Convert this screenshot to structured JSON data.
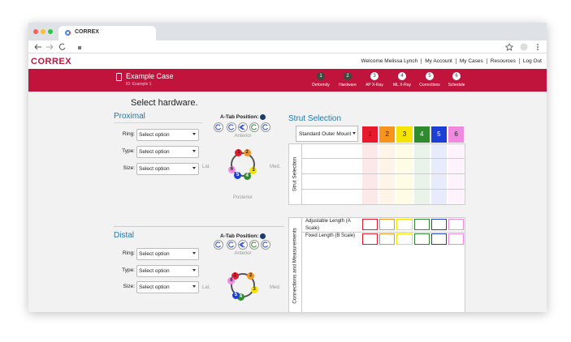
{
  "browser": {
    "tab_title": "CORREX"
  },
  "app": {
    "logo": "CORREX",
    "nav": [
      "Welcome Melissa Lynch",
      "My Account",
      "My Cases",
      "Resources",
      "Log Out"
    ],
    "case_title": "Example Case",
    "case_id": "ID: Example 1",
    "steps": [
      {
        "number": "1",
        "label": "Deformity"
      },
      {
        "number": "2",
        "label": "Hardware"
      },
      {
        "number": "3",
        "label": "AP X-Ray"
      },
      {
        "number": "4",
        "label": "ML X-Ray"
      },
      {
        "number": "5",
        "label": "Corrections"
      },
      {
        "number": "6",
        "label": "Schedule"
      }
    ]
  },
  "heading": "Select hardware.",
  "sections": [
    {
      "title": "Proximal",
      "fields": [
        {
          "label": "Ring:",
          "value": "Select option"
        },
        {
          "label": "Type:",
          "value": "Select option"
        },
        {
          "label": "Size:",
          "value": "Select option"
        }
      ],
      "atab_label": "A-Tab Position:",
      "anterior": "Anterior",
      "posterior": "Posterior",
      "lat": "Lat.",
      "med": "Med.",
      "ring_dots": [
        {
          "label": "1",
          "color": "#e8192c"
        },
        {
          "label": "2",
          "color": "#f7941d"
        },
        {
          "label": "3",
          "color": "#f5e400"
        },
        {
          "label": "4",
          "color": "#2e8b2e"
        },
        {
          "label": "5",
          "color": "#1d3fd6"
        },
        {
          "label": "6",
          "color": "#f08ae0"
        }
      ]
    },
    {
      "title": "Distal",
      "fields": [
        {
          "label": "Ring:",
          "value": "Select option"
        },
        {
          "label": "Type:",
          "value": "Select option"
        },
        {
          "label": "Size:",
          "value": "Select option"
        }
      ],
      "atab_label": "A-Tab Position:",
      "anterior": "Anterior",
      "lat": "Lat.",
      "med": "Med.",
      "ring_dots": [
        {
          "label": "1",
          "color": "#e8192c"
        },
        {
          "label": "2",
          "color": "#f7941d"
        },
        {
          "label": "3",
          "color": "#f5e400"
        },
        {
          "label": "4",
          "color": "#2e8b2e"
        },
        {
          "label": "5",
          "color": "#1d3fd6"
        },
        {
          "label": "6",
          "color": "#f08ae0"
        }
      ]
    }
  ],
  "struts": {
    "title": "Strut Selection",
    "mount": "Standard Outer Mount",
    "selection_label": "Strut Selection",
    "connections_label": "Connections and Measurements",
    "columns": [
      {
        "label": "1",
        "color": "#e8192c"
      },
      {
        "label": "2",
        "color": "#f7941d"
      },
      {
        "label": "3",
        "color": "#f5e400"
      },
      {
        "label": "4",
        "color": "#2e8b2e"
      },
      {
        "label": "5",
        "color": "#1d3fd6"
      },
      {
        "label": "6",
        "color": "#f08ae0"
      }
    ],
    "rows": [
      "Adjustable Length (A Scale)",
      "Fixed Length (B Scale)"
    ]
  }
}
